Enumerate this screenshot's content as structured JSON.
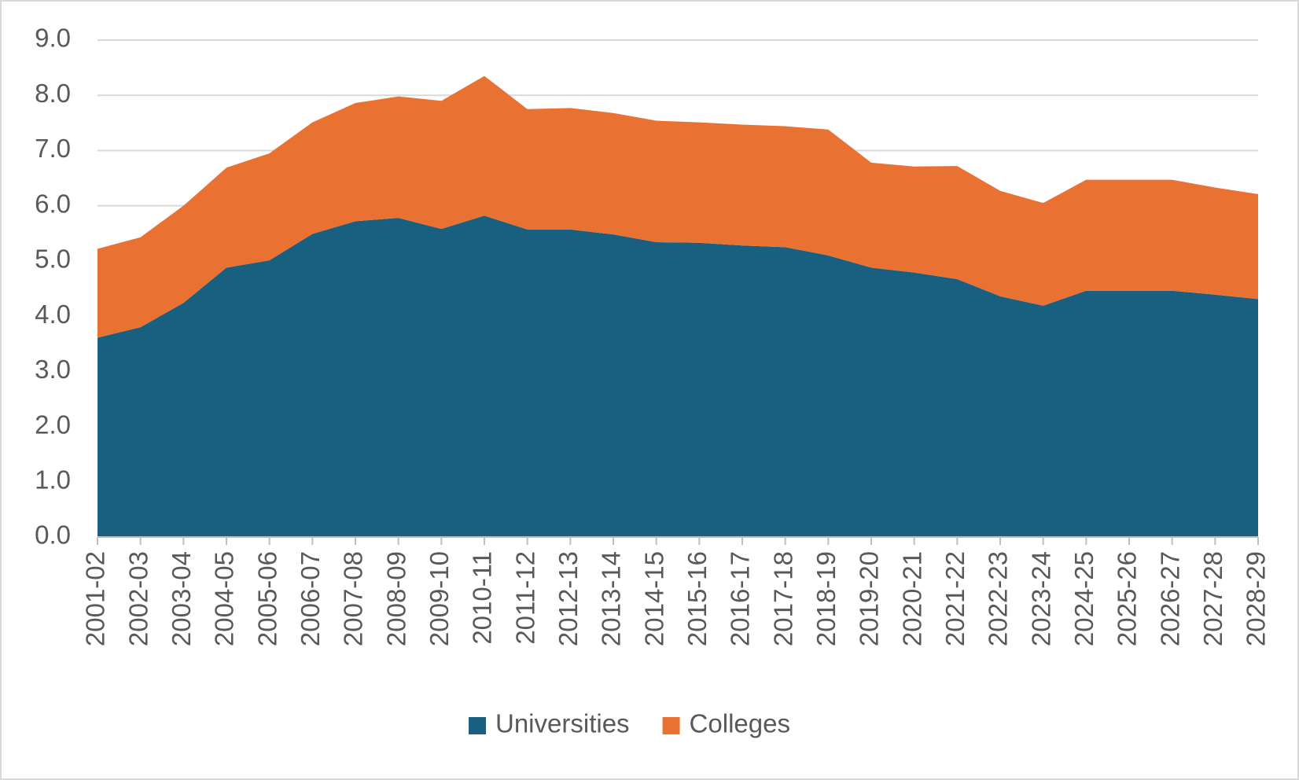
{
  "chart_data": {
    "type": "area",
    "stacked": true,
    "categories": [
      "2001-02",
      "2002-03",
      "2003-04",
      "2004-05",
      "2005-06",
      "2006-07",
      "2007-08",
      "2008-09",
      "2009-10",
      "2010-11",
      "2011-12",
      "2012-13",
      "2013-14",
      "2014-15",
      "2015-16",
      "2016-17",
      "2017-18",
      "2018-19",
      "2019-20",
      "2020-21",
      "2021-22",
      "2022-23",
      "2023-24",
      "2024-25",
      "2025-26",
      "2026-27",
      "2027-28",
      "2028-29"
    ],
    "series": [
      {
        "name": "Universities",
        "color": "#195f80",
        "values": [
          3.61,
          3.8,
          4.24,
          4.88,
          5.01,
          5.49,
          5.72,
          5.78,
          5.58,
          5.82,
          5.57,
          5.57,
          5.48,
          5.34,
          5.33,
          5.28,
          5.25,
          5.1,
          4.88,
          4.79,
          4.67,
          4.36,
          4.19,
          4.46,
          4.46,
          4.46,
          4.39,
          4.31
        ]
      },
      {
        "name": "Colleges",
        "color": "#e97232",
        "values": [
          1.61,
          1.63,
          1.76,
          1.81,
          1.94,
          2.02,
          2.14,
          2.2,
          2.32,
          2.53,
          2.18,
          2.2,
          2.2,
          2.2,
          2.18,
          2.19,
          2.19,
          2.28,
          1.9,
          1.92,
          2.05,
          1.91,
          1.86,
          2.01,
          2.01,
          2.01,
          1.94,
          1.9
        ]
      }
    ],
    "ylim": [
      0,
      9
    ],
    "yticks": [
      {
        "value": 0,
        "label": "0.0"
      },
      {
        "value": 1,
        "label": "1.0"
      },
      {
        "value": 2,
        "label": "2.0"
      },
      {
        "value": 3,
        "label": "3.0"
      },
      {
        "value": 4,
        "label": "4.0"
      },
      {
        "value": 5,
        "label": "5.0"
      },
      {
        "value": 6,
        "label": "6.0"
      },
      {
        "value": 7,
        "label": "7.0"
      },
      {
        "value": 8,
        "label": "8.0"
      },
      {
        "value": 9,
        "label": "9.0"
      }
    ],
    "grid": true,
    "legend": "bottom"
  }
}
